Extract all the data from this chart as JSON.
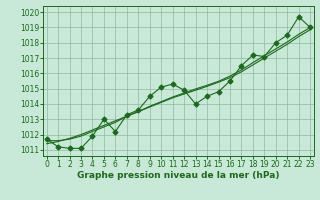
{
  "x": [
    0,
    1,
    2,
    3,
    4,
    5,
    6,
    7,
    8,
    9,
    10,
    11,
    12,
    13,
    14,
    15,
    16,
    17,
    18,
    19,
    20,
    21,
    22,
    23
  ],
  "y_main": [
    1011.7,
    1011.2,
    1011.1,
    1011.1,
    1011.9,
    1013.0,
    1012.2,
    1013.3,
    1013.6,
    1014.5,
    1015.1,
    1015.3,
    1014.9,
    1014.0,
    1014.5,
    1014.8,
    1015.5,
    1016.5,
    1017.2,
    1017.1,
    1018.0,
    1018.5,
    1019.7,
    1019.0
  ],
  "y_smooth1": [
    1011.6,
    1011.6,
    1011.7,
    1011.9,
    1012.2,
    1012.5,
    1012.8,
    1013.2,
    1013.5,
    1013.85,
    1014.15,
    1014.45,
    1014.72,
    1014.98,
    1015.22,
    1015.48,
    1015.82,
    1016.22,
    1016.7,
    1017.15,
    1017.6,
    1018.05,
    1018.55,
    1019.0
  ],
  "y_smooth2": [
    1011.4,
    1011.55,
    1011.75,
    1012.0,
    1012.3,
    1012.6,
    1012.9,
    1013.2,
    1013.5,
    1013.8,
    1014.1,
    1014.4,
    1014.65,
    1014.9,
    1015.15,
    1015.42,
    1015.72,
    1016.1,
    1016.55,
    1017.0,
    1017.45,
    1017.9,
    1018.4,
    1018.85
  ],
  "line_color": "#1a6b1a",
  "bg_color": "#c8e8d8",
  "grid_color": "#90b8a0",
  "plot_bg": "#c8e8d8",
  "ylim": [
    1010.6,
    1020.4
  ],
  "xlim": [
    -0.3,
    23.3
  ],
  "xlabel": "Graphe pression niveau de la mer (hPa)",
  "yticks": [
    1011,
    1012,
    1013,
    1014,
    1015,
    1016,
    1017,
    1018,
    1019,
    1020
  ],
  "xticks": [
    0,
    1,
    2,
    3,
    4,
    5,
    6,
    7,
    8,
    9,
    10,
    11,
    12,
    13,
    14,
    15,
    16,
    17,
    18,
    19,
    20,
    21,
    22,
    23
  ],
  "marker": "D",
  "marker_size": 2.5,
  "line_width": 0.8,
  "tick_fontsize": 5.5,
  "xlabel_fontsize": 6.5
}
